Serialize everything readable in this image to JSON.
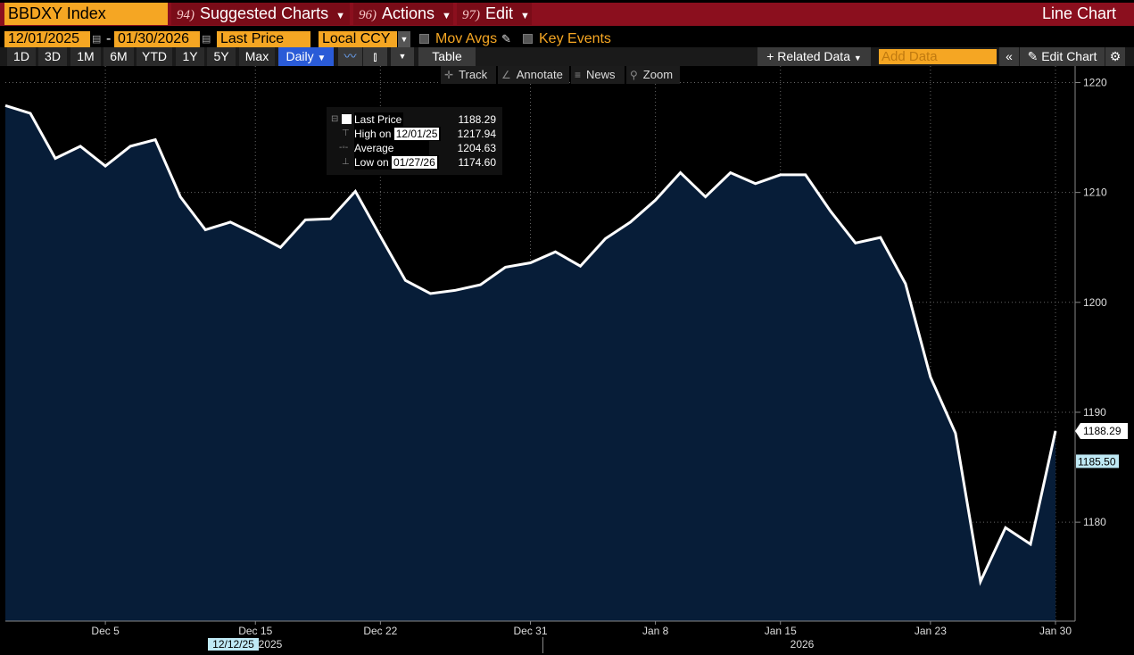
{
  "header": {
    "ticker": "BBDXY Index",
    "menus": [
      {
        "num": "94)",
        "label": "Suggested Charts"
      },
      {
        "num": "96)",
        "label": "Actions"
      },
      {
        "num": "97)",
        "label": "Edit"
      }
    ],
    "chart_type": "Line Chart"
  },
  "settings": {
    "start_date": "12/01/2025",
    "end_date": "01/30/2026",
    "separator": "-",
    "field": "Last Price",
    "currency": "Local CCY",
    "mov_avgs": "Mov Avgs",
    "key_events": "Key Events"
  },
  "toolbar": {
    "periods": [
      "1D",
      "3D",
      "1M",
      "6M",
      "YTD",
      "1Y",
      "5Y",
      "Max"
    ],
    "frequency": "Daily",
    "table": "Table",
    "related_data": "Related Data",
    "add_data_placeholder": "Add Data",
    "edit_chart": "Edit Chart"
  },
  "tools": [
    "Track",
    "Annotate",
    "News",
    "Zoom"
  ],
  "legend": {
    "last_label": "Last Price",
    "last_value": "1188.29",
    "high_label": "High on",
    "high_date": "12/01/25",
    "high_value": "1217.94",
    "avg_label": "Average",
    "avg_value": "1204.63",
    "low_label": "Low on",
    "low_date": "01/27/26",
    "low_value": "1174.60"
  },
  "colors": {
    "accent": "#f5a623",
    "header_bg": "#8b0f1e",
    "area_fill": "#071d38",
    "line": "#ffffff",
    "active_btn": "#2a5bd7"
  },
  "chart_data": {
    "type": "area",
    "series": [
      {
        "values": [
          1217.9,
          1217.2,
          1213.1,
          1214.2,
          1212.4,
          1214.2,
          1214.8,
          1209.6,
          1206.6,
          1207.3,
          1206.2,
          1205.0,
          1207.5,
          1207.6,
          1210.1,
          1206.0,
          1202.0,
          1200.8,
          1201.1,
          1201.6,
          1203.2,
          1203.6,
          1204.6,
          1203.3,
          1205.8,
          1207.3,
          1209.3,
          1211.8,
          1209.6,
          1211.8,
          1210.8,
          1211.6,
          1211.6,
          1208.3,
          1205.4,
          1205.9,
          1201.7,
          1193.2,
          1188.1,
          1174.6,
          1179.5,
          1178.0,
          1188.29
        ]
      }
    ],
    "x_labels": [
      "Dec 5",
      "Dec 15",
      "Dec 22",
      "Dec 31",
      "Jan 8",
      "Jan 15",
      "Jan 23",
      "Jan 30"
    ],
    "x_label_index": [
      4,
      10,
      15,
      21,
      26,
      31,
      37,
      42
    ],
    "year_labels": [
      "2025",
      "2026"
    ],
    "crosshair_date": "12/12/25",
    "y_ticks": [
      1180,
      1190,
      1200,
      1210,
      1220
    ],
    "ylim": [
      1171.0,
      1221.5
    ],
    "last_price_label": "1188.29",
    "secondary_label": "1185.50",
    "secondary_value": 1185.5,
    "grid": true
  }
}
